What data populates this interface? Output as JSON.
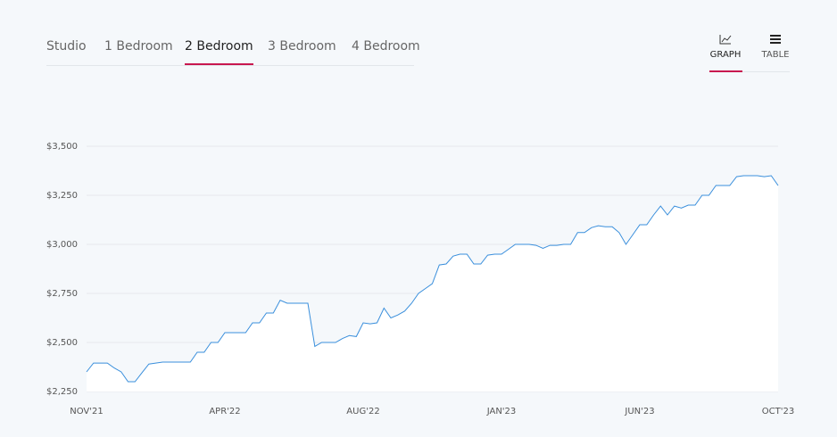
{
  "tabs": [
    "Studio",
    "1 Bedroom",
    "2 Bedroom",
    "3 Bedroom",
    "4 Bedroom"
  ],
  "active_tab": 2,
  "views": [
    "GRAPH",
    "TABLE"
  ],
  "active_view": 0,
  "chart_data": {
    "type": "line",
    "color": "#3a8fdc",
    "fill": "#ffffff",
    "grid": true,
    "categories": [
      "NOV'21",
      null,
      null,
      null,
      null,
      null,
      null,
      null,
      null,
      null,
      null,
      null,
      null,
      null,
      null,
      null,
      null,
      null,
      null,
      null,
      "APR'22",
      null,
      null,
      null,
      null,
      null,
      null,
      null,
      null,
      null,
      null,
      null,
      null,
      null,
      null,
      null,
      null,
      null,
      null,
      null,
      "AUG'22",
      null,
      null,
      null,
      null,
      null,
      null,
      null,
      null,
      null,
      null,
      null,
      null,
      null,
      null,
      null,
      null,
      null,
      null,
      null,
      "JAN'23",
      null,
      null,
      null,
      null,
      null,
      null,
      null,
      null,
      null,
      null,
      null,
      null,
      null,
      null,
      null,
      null,
      null,
      null,
      null,
      "JUN'23",
      null,
      null,
      null,
      null,
      null,
      null,
      null,
      null,
      null,
      null,
      null,
      null,
      null,
      null,
      null,
      null,
      null,
      null,
      null,
      "OCT'23"
    ],
    "values": [
      2350,
      2395,
      2395,
      2395,
      2370,
      2350,
      2300,
      2300,
      2345,
      2390,
      2395,
      2400,
      2400,
      2400,
      2400,
      2400,
      2450,
      2450,
      2500,
      2500,
      2550,
      2550,
      2550,
      2550,
      2600,
      2600,
      2650,
      2650,
      2715,
      2700,
      2700,
      2700,
      2700,
      2480,
      2500,
      2500,
      2500,
      2520,
      2535,
      2530,
      2600,
      2595,
      2600,
      2675,
      2625,
      2640,
      2660,
      2700,
      2750,
      2775,
      2800,
      2895,
      2900,
      2940,
      2950,
      2950,
      2900,
      2900,
      2945,
      2950,
      2950,
      2975,
      3000,
      3000,
      3000,
      2995,
      2980,
      2995,
      2995,
      3000,
      3000,
      3060,
      3060,
      3085,
      3095,
      3090,
      3090,
      3060,
      3000,
      3050,
      3100,
      3100,
      3150,
      3195,
      3150,
      3195,
      3185,
      3200,
      3200,
      3250,
      3250,
      3300,
      3300,
      3300,
      3345,
      3350,
      3350,
      3350,
      3345,
      3350,
      3300
    ],
    "ylim": [
      2250,
      3500
    ],
    "yticks": [
      {
        "value": 2250,
        "label": "$2,250"
      },
      {
        "value": 2500,
        "label": "$2,500"
      },
      {
        "value": 2750,
        "label": "$2,750"
      },
      {
        "value": 3000,
        "label": "$3,000"
      },
      {
        "value": 3250,
        "label": "$3,250"
      },
      {
        "value": 3500,
        "label": "$3,500"
      }
    ]
  }
}
